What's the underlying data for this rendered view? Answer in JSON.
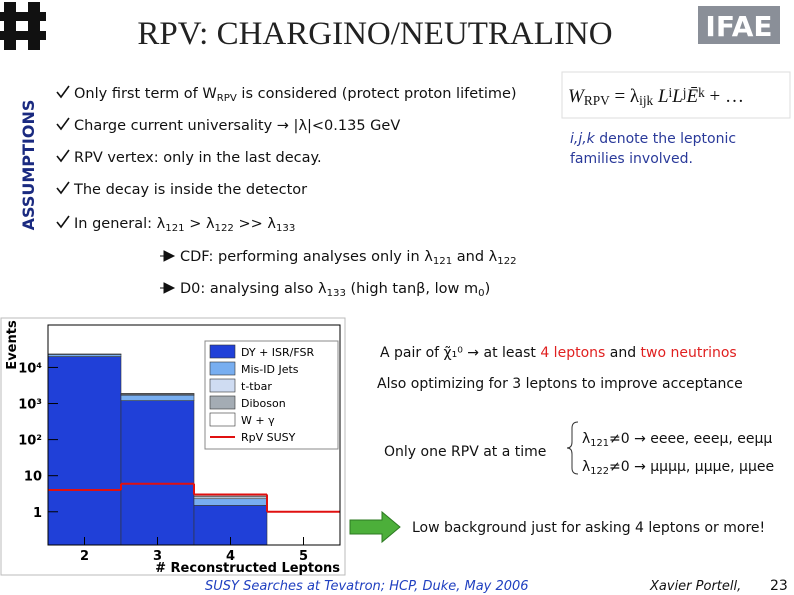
{
  "header": {
    "title": "RPV: CHARGINO/NEUTRALINO",
    "side_label": "ASSUMPTIONS",
    "logo": "IFAE"
  },
  "bullets": [
    [
      "Only first term of W",
      "RPV",
      " is considered (protect proton lifetime)"
    ],
    [
      "Charge current universality → |λ|<0.135 GeV"
    ],
    [
      "RPV vertex: only in the last decay."
    ],
    [
      "The decay is inside the detector"
    ],
    [
      "In general: λ",
      "121",
      " > λ",
      "122",
      " >> λ",
      "133"
    ]
  ],
  "sub_bullets": [
    [
      "CDF: performing analyses only in λ",
      "121",
      " and λ",
      "122"
    ],
    [
      "D0: analysing also λ",
      "133",
      " (high tanβ, low m",
      "0",
      ")"
    ]
  ],
  "formula": [
    "W",
    "RPV",
    " = λ",
    "ijk",
    " L",
    "i",
    "L",
    "j",
    "Ē",
    "k",
    " + …"
  ],
  "formula_note": [
    "i,j,k",
    " denote the leptonic",
    "families involved."
  ],
  "right": {
    "pair": [
      "A pair of ",
      "χ̃₁⁰",
      " → at least ",
      "4 leptons",
      " and ",
      "two neutrinos"
    ],
    "optimizing": "Also optimizing for 3 leptons to improve acceptance",
    "one_rpv": "Only one RPV at a time",
    "cases": [
      [
        "λ",
        "121",
        "≠0 → eeee, eeeμ, eeμμ"
      ],
      [
        "λ",
        "122",
        "≠0 → μμμμ, μμμe, μμee"
      ]
    ],
    "conclusion": "Low background just for asking 4 leptons or more!"
  },
  "footer": {
    "event": "SUSY Searches at Tevatron;  HCP, Duke, May 2006",
    "author": "Xavier Portell,",
    "page": "23"
  },
  "chart_data": {
    "type": "bar",
    "stacked": true,
    "log_y": true,
    "legend": "upper right",
    "x_label": "# Reconstructed Leptons",
    "y_label": "Events",
    "x": [
      2,
      3,
      4,
      5
    ],
    "xlim": [
      1.5,
      5.5
    ],
    "xticks": [
      2,
      3,
      4,
      5
    ],
    "ylim": [
      0.12,
      150000
    ],
    "yticks": [
      1,
      10,
      {
        "value": 100,
        "label": "10²"
      },
      {
        "value": 1000,
        "label": "10³"
      },
      {
        "value": 10000,
        "label": "10⁴"
      }
    ],
    "series": [
      {
        "name": "DY + ISR/FSR",
        "color": "#2040d8",
        "values": [
          20000,
          1200,
          1.5,
          0
        ]
      },
      {
        "name": "Mis-ID Jets",
        "color": "#78aef0",
        "values": [
          3000,
          500,
          0.8,
          0
        ]
      },
      {
        "name": "t-tbar",
        "color": "#cfdcf2",
        "values": [
          300,
          100,
          0.3,
          0
        ]
      },
      {
        "name": "Diboson",
        "color": "#a4acb4",
        "values": [
          100,
          80,
          0.3,
          0
        ]
      },
      {
        "name": "W + γ",
        "color": "#ffffff",
        "values": [
          50,
          20,
          0.1,
          0
        ]
      },
      {
        "name": "RpV SUSY",
        "color": "#e01010",
        "type": "step",
        "values": [
          4,
          6,
          3,
          1
        ]
      }
    ]
  }
}
